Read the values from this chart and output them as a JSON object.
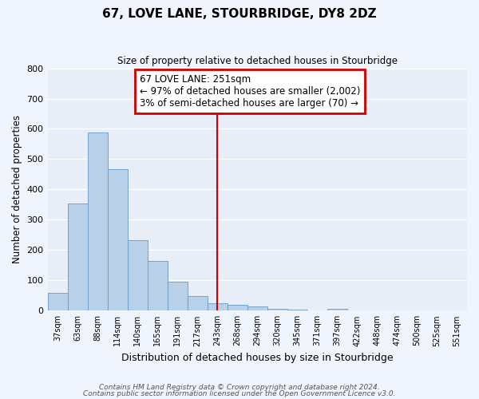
{
  "title": "67, LOVE LANE, STOURBRIDGE, DY8 2DZ",
  "subtitle": "Size of property relative to detached houses in Stourbridge",
  "xlabel": "Distribution of detached houses by size in Stourbridge",
  "ylabel": "Number of detached properties",
  "bar_labels": [
    "37sqm",
    "63sqm",
    "88sqm",
    "114sqm",
    "140sqm",
    "165sqm",
    "191sqm",
    "217sqm",
    "243sqm",
    "268sqm",
    "294sqm",
    "320sqm",
    "345sqm",
    "371sqm",
    "397sqm",
    "422sqm",
    "448sqm",
    "474sqm",
    "500sqm",
    "525sqm",
    "551sqm"
  ],
  "bar_values": [
    60,
    355,
    588,
    468,
    233,
    163,
    95,
    48,
    25,
    18,
    13,
    7,
    3,
    1,
    5,
    1,
    1,
    0,
    0,
    0,
    1
  ],
  "bar_color": "#b8d0e8",
  "bar_edge_color": "#6699cc",
  "ylim": [
    0,
    800
  ],
  "yticks": [
    0,
    100,
    200,
    300,
    400,
    500,
    600,
    700,
    800
  ],
  "vline_x": 8,
  "vline_color": "#cc0000",
  "annotation_title": "67 LOVE LANE: 251sqm",
  "annotation_line1": "← 97% of detached houses are smaller (2,002)",
  "annotation_line2": "3% of semi-detached houses are larger (70) →",
  "annotation_box_color": "#cc0000",
  "plot_bg_color": "#e8eef8",
  "fig_bg_color": "#f0f4fc",
  "grid_color": "#ffffff",
  "footer_line1": "Contains HM Land Registry data © Crown copyright and database right 2024.",
  "footer_line2": "Contains public sector information licensed under the Open Government Licence v3.0."
}
